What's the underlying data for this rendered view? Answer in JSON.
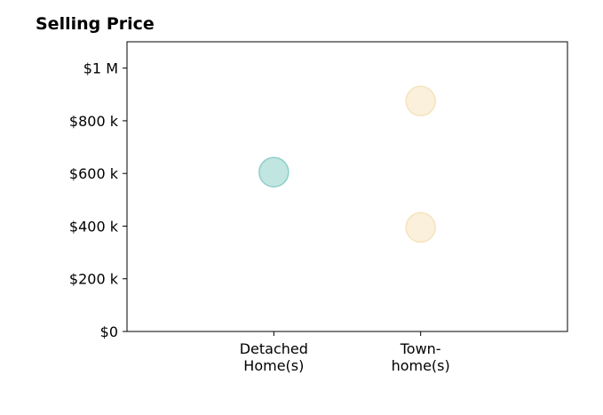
{
  "chart_data": {
    "type": "scatter",
    "title": "Selling Price",
    "xlabel": "",
    "ylabel": "",
    "categories": [
      "Detached\nHome(s)",
      "Town-\nhome(s)"
    ],
    "ylim": [
      0,
      1100000
    ],
    "y_ticks": [
      {
        "value": 0,
        "label": "$0"
      },
      {
        "value": 200000,
        "label": "$200 k"
      },
      {
        "value": 400000,
        "label": "$400 k"
      },
      {
        "value": 600000,
        "label": "$600 k"
      },
      {
        "value": 800000,
        "label": "$800 k"
      },
      {
        "value": 1000000,
        "label": "$1 M"
      }
    ],
    "points": [
      {
        "category": "Detached\nHome(s)",
        "value": 605000,
        "color": "#8ecfc9"
      },
      {
        "category": "Town-\nhome(s)",
        "value": 875000,
        "color": "#f6e3bd"
      },
      {
        "category": "Town-\nhome(s)",
        "value": 395000,
        "color": "#f6e3bd"
      }
    ],
    "grid": false,
    "legend": "none"
  }
}
